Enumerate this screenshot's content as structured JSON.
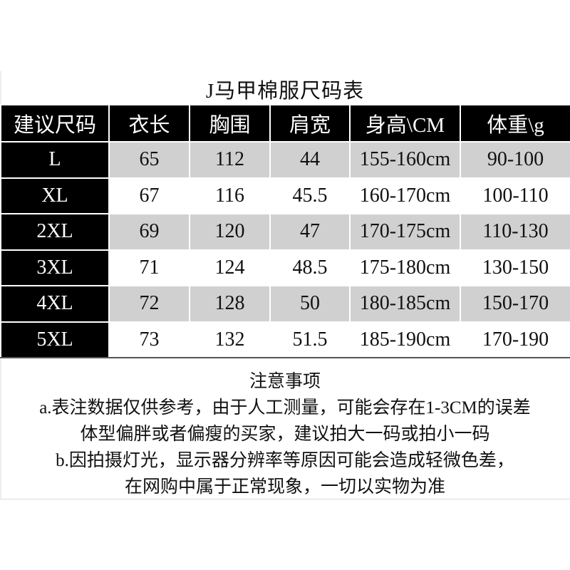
{
  "title": "J马甲棉服尺码表",
  "table": {
    "headers": [
      "建议尺码",
      "衣长",
      "胸围",
      "肩宽",
      "身高\\CM",
      "体重\\g"
    ],
    "rows": [
      [
        "L",
        "65",
        "112",
        "44",
        "155-160cm",
        "90-100"
      ],
      [
        "XL",
        "67",
        "116",
        "45.5",
        "160-170cm",
        "100-110"
      ],
      [
        "2XL",
        "69",
        "120",
        "47",
        "170-175cm",
        "110-130"
      ],
      [
        "3XL",
        "71",
        "124",
        "48.5",
        "175-180cm",
        "130-150"
      ],
      [
        "4XL",
        "72",
        "128",
        "50",
        "180-185cm",
        "150-170"
      ],
      [
        "5XL",
        "73",
        "132",
        "51.5",
        "185-190cm",
        "170-190"
      ]
    ]
  },
  "notes": {
    "heading": "注意事项",
    "lines": [
      "a.表注数据仅供参考，由于人工测量，可能会存在1-3CM的误差",
      "体型偏胖或者偏瘦的买家，建议拍大一码或拍小一码",
      "b.因拍摄灯光，显示器分辨率等原因可能会造成轻微色差，",
      "在网购中属于正常现象，一切以实物为准"
    ]
  }
}
